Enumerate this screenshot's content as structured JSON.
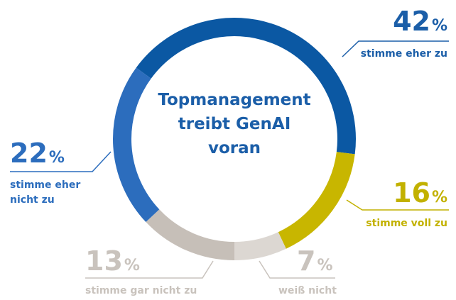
{
  "chart_data": {
    "type": "donut",
    "title": "Topmanagement treibt GenAI voran",
    "categories": [
      "stimme eher zu",
      "stimme voll zu",
      "weiß nicht",
      "stimme gar nicht zu",
      "stimme eher nicht zu"
    ],
    "values": [
      42,
      16,
      7,
      13,
      22
    ],
    "value_suffix": "%",
    "colors": [
      "#0b58a3",
      "#c8b600",
      "#dcd7d2",
      "#c6bfb8",
      "#2c6dbd"
    ],
    "label_colors": [
      "#1b5ea8",
      "#c2b100",
      "#c9c3bd",
      "#c9c3bd",
      "#2c6dbd"
    ]
  }
}
